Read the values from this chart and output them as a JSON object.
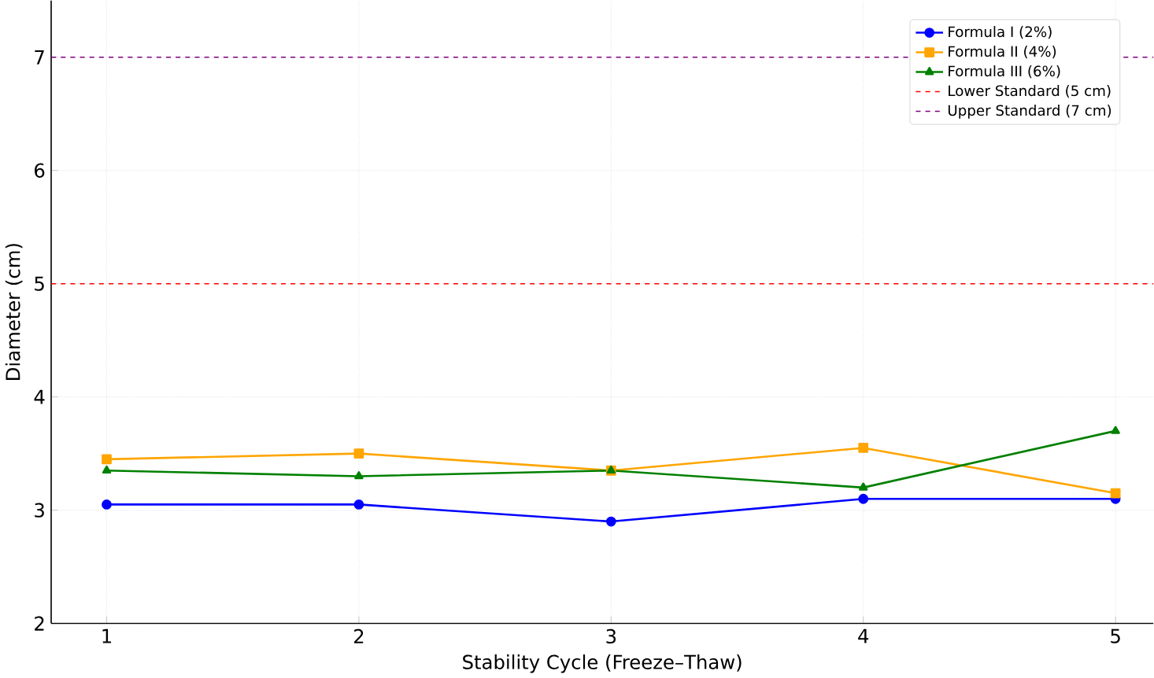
{
  "chart_data": {
    "type": "line",
    "xlabel": "Stability Cycle (Freeze–Thaw)",
    "ylabel": "Diameter (cm)",
    "x": [
      1,
      2,
      3,
      4,
      5
    ],
    "series": [
      {
        "name": "Formula I (2%)",
        "color": "#0000ff",
        "marker": "circle",
        "values": [
          3.05,
          3.05,
          2.9,
          3.1,
          3.1
        ]
      },
      {
        "name": "Formula II (4%)",
        "color": "#ffa500",
        "marker": "square",
        "values": [
          3.45,
          3.5,
          3.35,
          3.55,
          3.15
        ]
      },
      {
        "name": "Formula III (6%)",
        "color": "#008000",
        "marker": "triangle",
        "values": [
          3.35,
          3.3,
          3.35,
          3.2,
          3.7
        ]
      }
    ],
    "ref_lines": [
      {
        "axis": "y",
        "value": 5,
        "label": "Lower Standard (5 cm)",
        "color": "#ff0000",
        "line_style": "dashed"
      },
      {
        "axis": "y",
        "value": 7,
        "label": "Upper Standard (7 cm)",
        "color": "#800080",
        "line_style": "dashed"
      }
    ],
    "xlim": [
      0.78,
      5.15
    ],
    "ylim": [
      2,
      7.5
    ],
    "xticks": [
      1,
      2,
      3,
      4,
      5
    ],
    "yticks": [
      2,
      3,
      4,
      5,
      6,
      7
    ],
    "grid": true,
    "legend": "top right",
    "line_style": "solid"
  }
}
